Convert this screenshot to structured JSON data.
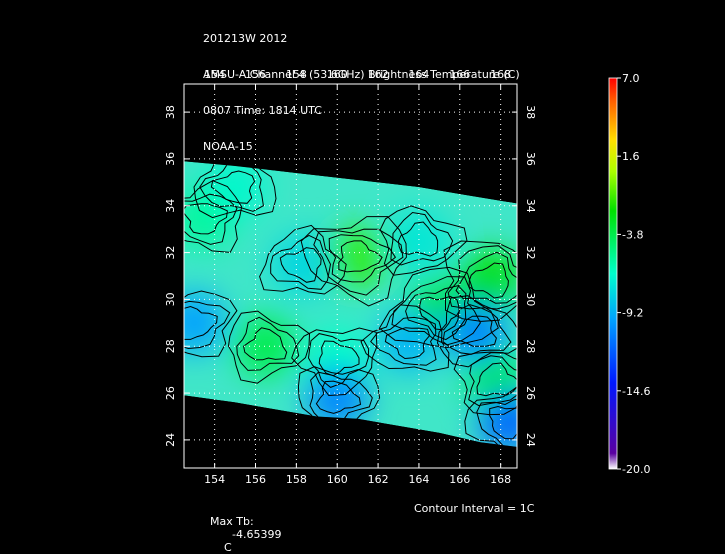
{
  "header": {
    "lines": [
      "201213W 2012",
      "AMSU-A Channel 4 (53.6GHz) Brightness Temperature (C)",
      "0807 Time: 1814 UTC",
      "NOAA-15"
    ]
  },
  "footer": {
    "max_label": "Max Tb:",
    "max_value": "-4.65399",
    "max_unit": "C",
    "contour_interval": "Contour Interval = 1C"
  },
  "chart_data": {
    "type": "heatmap",
    "title": "AMSU-A Channel 4 (53.6GHz) Brightness Temperature (C)",
    "x_ticks": [
      "154",
      "156",
      "158",
      "160",
      "162",
      "164",
      "166",
      "168"
    ],
    "y_ticks": [
      "24",
      "26",
      "28",
      "30",
      "32",
      "34",
      "36",
      "38"
    ],
    "xlim": [
      152.5,
      168.8
    ],
    "ylim": [
      22.8,
      39.2
    ],
    "grid": true,
    "swath": {
      "top_edge": [
        [
          152.5,
          35.9
        ],
        [
          155,
          35.7
        ],
        [
          158,
          35.4
        ],
        [
          161,
          35.1
        ],
        [
          164,
          34.8
        ],
        [
          166,
          34.5
        ],
        [
          168.8,
          34.1
        ]
      ],
      "bottom_edge": [
        [
          152.5,
          25.9
        ],
        [
          155,
          25.6
        ],
        [
          157,
          25.3
        ],
        [
          159,
          25.0
        ],
        [
          161,
          24.9
        ],
        [
          163,
          24.6
        ],
        [
          165,
          24.3
        ],
        [
          167,
          23.9
        ],
        [
          168.8,
          23.7
        ]
      ]
    },
    "field_points": [
      {
        "lon": 161.0,
        "lat": 31.8,
        "tb": -4.7
      },
      {
        "lon": 153.5,
        "lat": 33.5,
        "tb": -6.5
      },
      {
        "lon": 155.0,
        "lat": 34.8,
        "tb": -7.0
      },
      {
        "lon": 156.5,
        "lat": 28.0,
        "tb": -6.0
      },
      {
        "lon": 160.0,
        "lat": 27.5,
        "tb": -6.8
      },
      {
        "lon": 165.0,
        "lat": 29.5,
        "tb": -5.8
      },
      {
        "lon": 167.5,
        "lat": 30.8,
        "tb": -5.5
      },
      {
        "lon": 167.8,
        "lat": 26.5,
        "tb": -6.0
      },
      {
        "lon": 153.0,
        "lat": 29.0,
        "tb": -9.5
      },
      {
        "lon": 163.5,
        "lat": 28.2,
        "tb": -9.0
      },
      {
        "lon": 166.8,
        "lat": 28.6,
        "tb": -10.5
      },
      {
        "lon": 160.0,
        "lat": 25.8,
        "tb": -10.5
      },
      {
        "lon": 168.4,
        "lat": 24.8,
        "tb": -11.5
      },
      {
        "lon": 158.3,
        "lat": 31.5,
        "tb": -8.0
      },
      {
        "lon": 164.0,
        "lat": 32.5,
        "tb": -7.5
      }
    ],
    "colorbar": {
      "labels": [
        "7.0",
        "1.6",
        "-3.8",
        "-9.2",
        "-14.6",
        "-20.0"
      ],
      "min": -20.0,
      "max": 7.0
    }
  }
}
